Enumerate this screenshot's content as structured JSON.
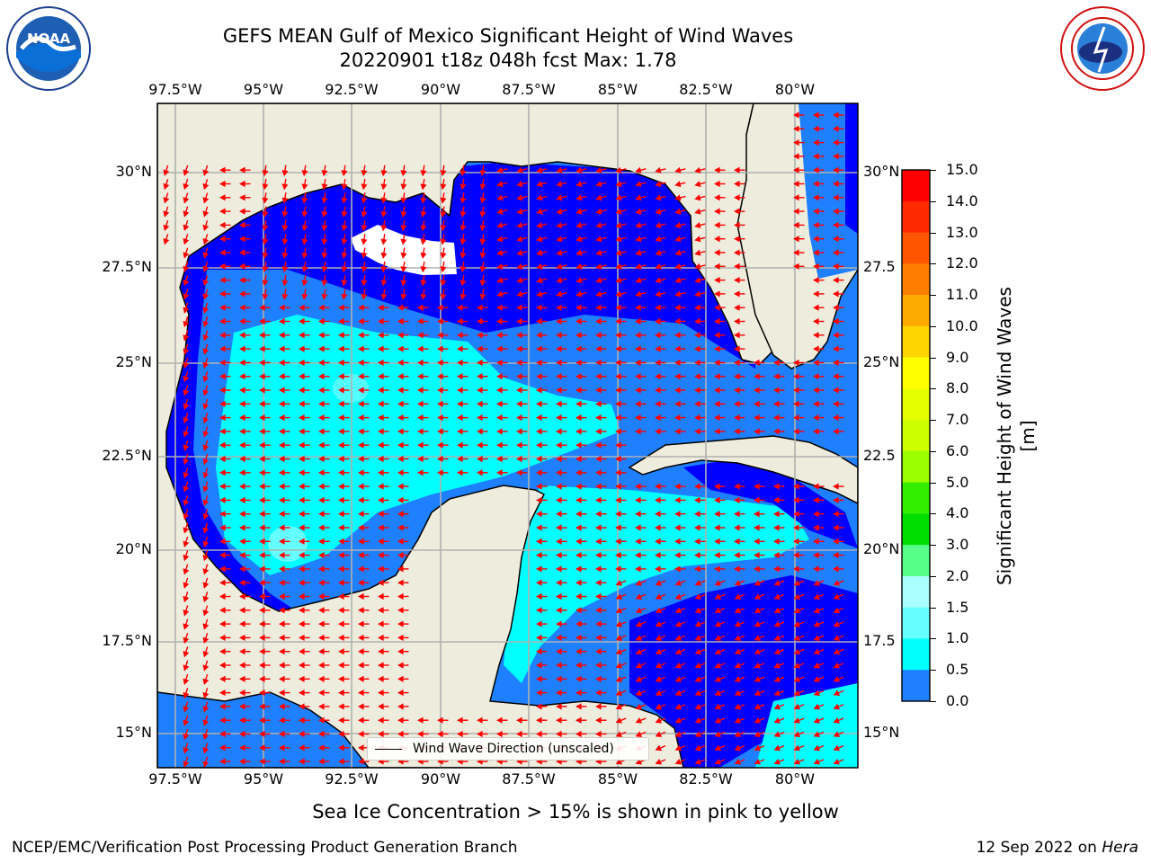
{
  "header": {
    "title_line1": "GEFS MEAN Gulf of Mexico Significant Height of Wind Waves",
    "title_line2": "20220901 t18z 048h fcst   Max: 1.78"
  },
  "logos": {
    "left": {
      "name": "noaa-logo",
      "text": "NOAA",
      "ring_text": "NATIONAL OCEANIC AND ATMOSPHERIC ADMINISTRATION · U.S. DEPARTMENT OF COMMERCE"
    },
    "right": {
      "name": "nws-logo",
      "ring_text": "NATIONAL WEATHER SERVICE"
    }
  },
  "map": {
    "lon_labels": [
      "97.5°W",
      "95°W",
      "92.5°W",
      "90°W",
      "87.5°W",
      "85°W",
      "82.5°W",
      "80°W"
    ],
    "lat_labels_left": [
      "30°N",
      "27.5°N",
      "25°N",
      "22.5°N",
      "20°N",
      "17.5°N",
      "15°N"
    ],
    "lat_labels_right": [
      "30°N",
      "27.5",
      "25°N",
      "22.5",
      "20°N",
      "17.5",
      "15°N"
    ],
    "legend_label": "Wind Wave Direction (unscaled)",
    "colors": {
      "land": "#eeeddd",
      "blue": "#0000ff",
      "mid_blue": "#1e7fff",
      "cyan": "#00ffff",
      "light_cyan": "#66ffff",
      "arrow": "#ff0000"
    }
  },
  "colorbar": {
    "ticks": [
      "15.0",
      "14.0",
      "13.0",
      "12.0",
      "11.0",
      "10.0",
      "9.0",
      "8.0",
      "7.0",
      "6.0",
      "5.0",
      "4.0",
      "3.0",
      "2.0",
      "1.5",
      "1.0",
      "0.5",
      "0.0"
    ],
    "colors": [
      "#ff0000",
      "#ff2a00",
      "#ff5500",
      "#ff7f00",
      "#ffaa00",
      "#ffd400",
      "#ffff00",
      "#e5ff00",
      "#ccff00",
      "#99ff00",
      "#33ee00",
      "#00dd00",
      "#55ff88",
      "#aaffff",
      "#66ffff",
      "#00ffff",
      "#1e7fff",
      "#0000ff"
    ],
    "label": "Significant Height of Wind Waves [m]"
  },
  "note": "Sea Ice Concentration > 15% is shown in pink to yellow",
  "footer": {
    "left": "NCEP/EMC/Verification Post Processing Product Generation Branch",
    "date": "12 Sep 2022 on",
    "host": "Hera"
  }
}
